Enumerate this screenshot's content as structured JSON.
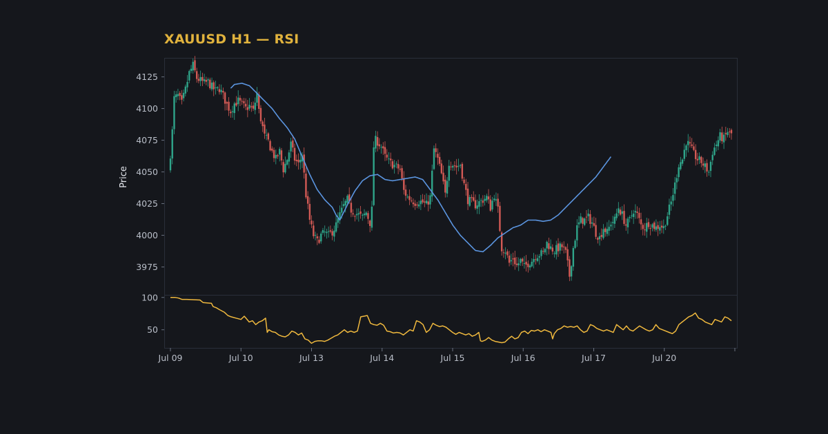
{
  "chart_data": {
    "type": "candlestick",
    "title": "XAUUSD H1 — RSI",
    "colors": {
      "background": "#15171c",
      "title": "#e0b23d",
      "up": "#2fa58a",
      "down": "#d35a55",
      "moving_average": "#5b95e0",
      "rsi": "#f0b93e",
      "frame": "#2a2f3a",
      "tick_text": "#b9bec8"
    },
    "price_panel": {
      "ylabel": "Price",
      "yticks": [
        3975,
        4000,
        4025,
        4050,
        4075,
        4100,
        4125
      ],
      "ylim": [
        3953,
        4140
      ]
    },
    "rsi_panel": {
      "yticks": [
        50,
        100
      ],
      "ylim": [
        22,
        104
      ]
    },
    "x_axis": {
      "tick_labels": [
        "Jul 09",
        "Jul 10",
        "Jul 13",
        "Jul 14",
        "Jul 15",
        "Jul 16",
        "Jul 17",
        "Jul 20"
      ]
    },
    "close_keypoints": [
      [
        0,
        4064
      ],
      [
        1,
        4082
      ],
      [
        2,
        4108
      ],
      [
        4,
        4110
      ],
      [
        6,
        4104
      ],
      [
        8,
        4115
      ],
      [
        10,
        4128
      ],
      [
        12,
        4134
      ],
      [
        14,
        4124
      ],
      [
        16,
        4122
      ],
      [
        18,
        4120
      ],
      [
        20,
        4121
      ],
      [
        22,
        4117
      ],
      [
        24,
        4114
      ],
      [
        26,
        4116
      ],
      [
        28,
        4110
      ],
      [
        30,
        4103
      ],
      [
        32,
        4098
      ],
      [
        34,
        4104
      ],
      [
        36,
        4106
      ],
      [
        38,
        4103
      ],
      [
        40,
        4100
      ],
      [
        42,
        4102
      ],
      [
        44,
        4098
      ],
      [
        46,
        4112
      ],
      [
        47,
        4098
      ],
      [
        48,
        4092
      ],
      [
        50,
        4078
      ],
      [
        52,
        4074
      ],
      [
        54,
        4066
      ],
      [
        56,
        4060
      ],
      [
        58,
        4066
      ],
      [
        60,
        4052
      ],
      [
        62,
        4060
      ],
      [
        64,
        4072
      ],
      [
        66,
        4060
      ],
      [
        68,
        4056
      ],
      [
        70,
        4064
      ],
      [
        72,
        4032
      ],
      [
        74,
        4012
      ],
      [
        76,
        4000
      ],
      [
        78,
        3995
      ],
      [
        80,
        4000
      ],
      [
        82,
        4002
      ],
      [
        84,
        4000
      ],
      [
        86,
        4003
      ],
      [
        88,
        4008
      ],
      [
        90,
        4016
      ],
      [
        92,
        4023
      ],
      [
        94,
        4028
      ],
      [
        96,
        4020
      ],
      [
        98,
        4018
      ],
      [
        100,
        4016
      ],
      [
        102,
        4014
      ],
      [
        104,
        4018
      ],
      [
        106,
        4010
      ],
      [
        107,
        4020
      ],
      [
        108,
        4070
      ],
      [
        109,
        4075
      ],
      [
        110,
        4074
      ],
      [
        112,
        4070
      ],
      [
        114,
        4062
      ],
      [
        116,
        4058
      ],
      [
        118,
        4056
      ],
      [
        120,
        4054
      ],
      [
        122,
        4052
      ],
      [
        124,
        4035
      ],
      [
        126,
        4030
      ],
      [
        128,
        4028
      ],
      [
        130,
        4026
      ],
      [
        132,
        4027
      ],
      [
        134,
        4026
      ],
      [
        136,
        4024
      ],
      [
        138,
        4030
      ],
      [
        140,
        4068
      ],
      [
        142,
        4060
      ],
      [
        144,
        4048
      ],
      [
        146,
        4032
      ],
      [
        148,
        4058
      ],
      [
        150,
        4056
      ],
      [
        152,
        4054
      ],
      [
        154,
        4056
      ],
      [
        156,
        4040
      ],
      [
        158,
        4028
      ],
      [
        160,
        4026
      ],
      [
        162,
        4024
      ],
      [
        164,
        4026
      ],
      [
        166,
        4028
      ],
      [
        168,
        4030
      ],
      [
        170,
        4022
      ],
      [
        172,
        4032
      ],
      [
        174,
        4020
      ],
      [
        176,
        3990
      ],
      [
        178,
        3988
      ],
      [
        180,
        3978
      ],
      [
        182,
        3982
      ],
      [
        184,
        3976
      ],
      [
        186,
        3980
      ],
      [
        188,
        3975
      ],
      [
        190,
        3978
      ],
      [
        192,
        3980
      ],
      [
        194,
        3984
      ],
      [
        196,
        3985
      ],
      [
        198,
        3986
      ],
      [
        200,
        3994
      ],
      [
        202,
        3990
      ],
      [
        204,
        3988
      ],
      [
        206,
        3990
      ],
      [
        208,
        3991
      ],
      [
        210,
        3986
      ],
      [
        212,
        3968
      ],
      [
        214,
        3990
      ],
      [
        216,
        4006
      ],
      [
        218,
        4012
      ],
      [
        220,
        4012
      ],
      [
        222,
        4014
      ],
      [
        224,
        4010
      ],
      [
        226,
        4002
      ],
      [
        228,
        3998
      ],
      [
        230,
        4006
      ],
      [
        232,
        4002
      ],
      [
        234,
        4010
      ],
      [
        236,
        4012
      ],
      [
        238,
        4022
      ],
      [
        240,
        4016
      ],
      [
        242,
        4008
      ],
      [
        244,
        4012
      ],
      [
        246,
        4020
      ],
      [
        248,
        4016
      ],
      [
        250,
        4008
      ],
      [
        252,
        4006
      ],
      [
        254,
        4010
      ],
      [
        256,
        4008
      ],
      [
        258,
        4006
      ],
      [
        260,
        4008
      ],
      [
        262,
        4006
      ],
      [
        264,
        4016
      ],
      [
        266,
        4026
      ],
      [
        268,
        4040
      ],
      [
        270,
        4056
      ],
      [
        272,
        4060
      ],
      [
        274,
        4074
      ],
      [
        276,
        4070
      ],
      [
        278,
        4064
      ],
      [
        280,
        4060
      ],
      [
        282,
        4058
      ],
      [
        284,
        4054
      ],
      [
        286,
        4050
      ],
      [
        288,
        4066
      ],
      [
        290,
        4072
      ],
      [
        292,
        4078
      ],
      [
        294,
        4076
      ],
      [
        296,
        4082
      ],
      [
        297,
        4080
      ],
      [
        298,
        4080
      ]
    ],
    "rsi_keypoints": [
      [
        0,
        100
      ],
      [
        3,
        100
      ],
      [
        5,
        99
      ],
      [
        7,
        97
      ],
      [
        10,
        97
      ],
      [
        18,
        96
      ],
      [
        20,
        92
      ],
      [
        25,
        91
      ],
      [
        26,
        86
      ],
      [
        28,
        84
      ],
      [
        30,
        81
      ],
      [
        33,
        77
      ],
      [
        35,
        72
      ],
      [
        37,
        70
      ],
      [
        40,
        68
      ],
      [
        43,
        66
      ],
      [
        45,
        71
      ],
      [
        46,
        68
      ],
      [
        48,
        62
      ],
      [
        50,
        64
      ],
      [
        52,
        58
      ],
      [
        54,
        62
      ],
      [
        56,
        64
      ],
      [
        58,
        68
      ],
      [
        59,
        46
      ],
      [
        60,
        50
      ],
      [
        62,
        47
      ],
      [
        64,
        46
      ],
      [
        66,
        42
      ],
      [
        68,
        40
      ],
      [
        70,
        39
      ],
      [
        72,
        42
      ],
      [
        74,
        48
      ],
      [
        76,
        46
      ],
      [
        78,
        42
      ],
      [
        80,
        45
      ],
      [
        82,
        36
      ],
      [
        84,
        34
      ],
      [
        86,
        29
      ],
      [
        88,
        32
      ],
      [
        90,
        33
      ],
      [
        92,
        33
      ],
      [
        94,
        32
      ],
      [
        96,
        34
      ],
      [
        98,
        37
      ],
      [
        100,
        40
      ],
      [
        102,
        42
      ],
      [
        104,
        46
      ],
      [
        106,
        50
      ],
      [
        108,
        46
      ],
      [
        110,
        48
      ],
      [
        112,
        46
      ],
      [
        114,
        48
      ],
      [
        116,
        70
      ],
      [
        118,
        71
      ],
      [
        120,
        72
      ],
      [
        122,
        60
      ],
      [
        124,
        58
      ],
      [
        126,
        57
      ],
      [
        128,
        60
      ],
      [
        130,
        57
      ],
      [
        132,
        48
      ],
      [
        134,
        47
      ],
      [
        136,
        45
      ],
      [
        138,
        46
      ],
      [
        140,
        45
      ],
      [
        142,
        42
      ],
      [
        144,
        46
      ],
      [
        146,
        50
      ],
      [
        148,
        48
      ],
      [
        150,
        64
      ],
      [
        152,
        62
      ],
      [
        154,
        58
      ],
      [
        156,
        46
      ],
      [
        158,
        50
      ],
      [
        160,
        60
      ],
      [
        162,
        57
      ],
      [
        164,
        55
      ],
      [
        166,
        56
      ],
      [
        168,
        54
      ],
      [
        170,
        50
      ],
      [
        172,
        46
      ],
      [
        174,
        43
      ],
      [
        176,
        46
      ],
      [
        178,
        44
      ],
      [
        180,
        42
      ],
      [
        182,
        44
      ],
      [
        184,
        40
      ],
      [
        186,
        42
      ],
      [
        188,
        46
      ],
      [
        189,
        33
      ],
      [
        190,
        32
      ],
      [
        192,
        34
      ],
      [
        194,
        38
      ],
      [
        196,
        34
      ],
      [
        198,
        32
      ],
      [
        200,
        31
      ],
      [
        202,
        30
      ],
      [
        204,
        31
      ],
      [
        206,
        36
      ],
      [
        208,
        40
      ],
      [
        210,
        36
      ],
      [
        212,
        38
      ],
      [
        214,
        46
      ],
      [
        216,
        48
      ],
      [
        218,
        44
      ],
      [
        220,
        49
      ],
      [
        222,
        48
      ],
      [
        224,
        50
      ],
      [
        226,
        47
      ],
      [
        228,
        50
      ],
      [
        230,
        48
      ],
      [
        232,
        46
      ],
      [
        233,
        36
      ],
      [
        234,
        44
      ],
      [
        236,
        50
      ],
      [
        238,
        52
      ],
      [
        240,
        56
      ],
      [
        242,
        54
      ],
      [
        244,
        55
      ],
      [
        246,
        54
      ],
      [
        248,
        56
      ],
      [
        250,
        50
      ],
      [
        252,
        46
      ],
      [
        254,
        48
      ],
      [
        256,
        58
      ],
      [
        258,
        56
      ],
      [
        260,
        52
      ],
      [
        262,
        50
      ],
      [
        264,
        48
      ],
      [
        266,
        50
      ],
      [
        268,
        48
      ],
      [
        270,
        46
      ],
      [
        272,
        58
      ],
      [
        274,
        54
      ],
      [
        276,
        50
      ],
      [
        278,
        56
      ],
      [
        280,
        50
      ],
      [
        282,
        48
      ],
      [
        284,
        52
      ],
      [
        286,
        56
      ],
      [
        288,
        53
      ],
      [
        290,
        50
      ],
      [
        292,
        48
      ],
      [
        294,
        50
      ],
      [
        296,
        58
      ],
      [
        298,
        52
      ],
      [
        300,
        50
      ],
      [
        302,
        48
      ],
      [
        304,
        46
      ],
      [
        306,
        44
      ],
      [
        308,
        48
      ],
      [
        310,
        58
      ],
      [
        312,
        62
      ],
      [
        314,
        66
      ],
      [
        316,
        70
      ],
      [
        318,
        72
      ],
      [
        320,
        76
      ],
      [
        322,
        68
      ],
      [
        324,
        66
      ],
      [
        326,
        62
      ],
      [
        328,
        60
      ],
      [
        330,
        58
      ],
      [
        332,
        66
      ],
      [
        334,
        64
      ],
      [
        336,
        62
      ],
      [
        338,
        70
      ],
      [
        340,
        68
      ],
      [
        342,
        64
      ]
    ],
    "moving_average_keypoints": [
      [
        32,
        4116
      ],
      [
        34,
        4119
      ],
      [
        38,
        4120
      ],
      [
        42,
        4118
      ],
      [
        46,
        4112
      ],
      [
        50,
        4106
      ],
      [
        54,
        4100
      ],
      [
        58,
        4092
      ],
      [
        62,
        4085
      ],
      [
        66,
        4076
      ],
      [
        70,
        4062
      ],
      [
        74,
        4048
      ],
      [
        78,
        4036
      ],
      [
        82,
        4028
      ],
      [
        86,
        4022
      ],
      [
        88,
        4016
      ],
      [
        90,
        4012
      ],
      [
        94,
        4024
      ],
      [
        98,
        4035
      ],
      [
        102,
        4043
      ],
      [
        106,
        4047
      ],
      [
        110,
        4048
      ],
      [
        114,
        4044
      ],
      [
        118,
        4043
      ],
      [
        122,
        4044
      ],
      [
        126,
        4045
      ],
      [
        130,
        4046
      ],
      [
        134,
        4044
      ],
      [
        138,
        4036
      ],
      [
        142,
        4028
      ],
      [
        146,
        4018
      ],
      [
        150,
        4008
      ],
      [
        154,
        4000
      ],
      [
        158,
        3994
      ],
      [
        162,
        3988
      ],
      [
        166,
        3987
      ],
      [
        170,
        3992
      ],
      [
        174,
        3998
      ],
      [
        178,
        4002
      ],
      [
        182,
        4006
      ],
      [
        186,
        4008
      ],
      [
        190,
        4012
      ],
      [
        194,
        4012
      ],
      [
        198,
        4011
      ],
      [
        202,
        4012
      ],
      [
        206,
        4016
      ],
      [
        210,
        4022
      ],
      [
        214,
        4028
      ],
      [
        218,
        4034
      ],
      [
        222,
        4040
      ],
      [
        226,
        4046
      ],
      [
        230,
        4054
      ],
      [
        234,
        4062
      ]
    ]
  }
}
